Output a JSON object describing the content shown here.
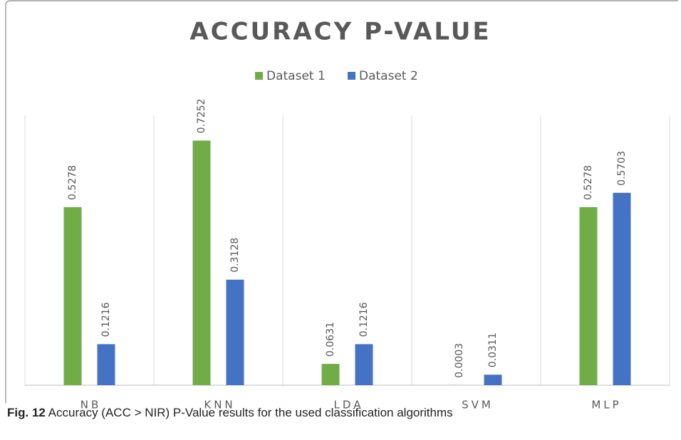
{
  "chart_data": {
    "type": "bar",
    "title": "ACCURACY P-VALUE",
    "categories": [
      "NB",
      "KNN",
      "LDA",
      "SVM",
      "MLP"
    ],
    "series": [
      {
        "name": "Dataset 1",
        "color": "#70ad47",
        "values": [
          0.5278,
          0.7252,
          0.0631,
          0.0003,
          0.5278
        ]
      },
      {
        "name": "Dataset 2",
        "color": "#4472c4",
        "values": [
          0.1216,
          0.3128,
          0.1216,
          0.0311,
          0.5703
        ]
      }
    ],
    "ylim": [
      0,
      0.8
    ],
    "legend": "top"
  },
  "caption": {
    "label": "Fig. 12",
    "text": "Accuracy (ACC > NIR) P-Value results for the used classification algorithms"
  }
}
